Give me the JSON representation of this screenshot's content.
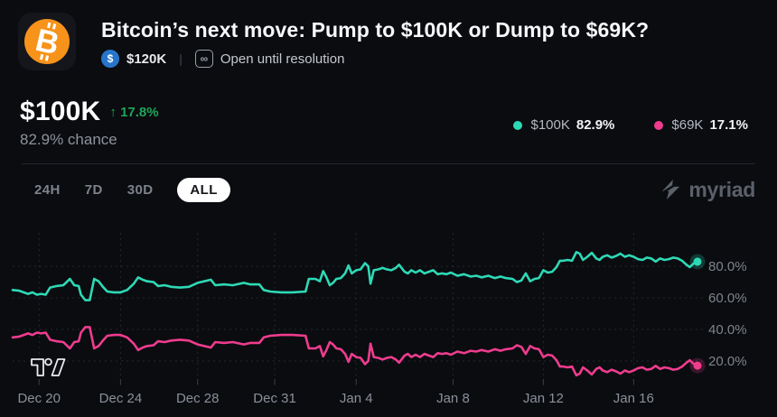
{
  "header": {
    "title": "Bitcoin’s next move: Pump to $100K or Dump to $69K?",
    "volume": "$120K",
    "status": "Open until resolution"
  },
  "icons": {
    "bitcoin": "B",
    "usdc": "$",
    "infinity": "∞",
    "up_arrow": "↑"
  },
  "price": {
    "outcome": "$100K",
    "change": "17.8%",
    "change_direction": "up",
    "chance": "82.9% chance"
  },
  "legend": {
    "position": "top-right",
    "items": [
      {
        "label": "$100K",
        "value": "82.9%",
        "color": "#2ed9b5"
      },
      {
        "label": "$69K",
        "value": "17.1%",
        "color": "#ef3c8e"
      }
    ]
  },
  "toolbar": {
    "ranges": [
      {
        "label": "24H",
        "active": false
      },
      {
        "label": "7D",
        "active": false
      },
      {
        "label": "30D",
        "active": false
      },
      {
        "label": "ALL",
        "active": true
      }
    ],
    "brand": "myriad"
  },
  "colors": {
    "background": "#0a0c10",
    "accent_green": "#1ea65a",
    "teal_line": "#2ed9b5",
    "pink_line": "#ef3c8e",
    "grid": "#24272d"
  },
  "chart_data": {
    "type": "line",
    "grid": "dashed",
    "x_axis": {
      "unit": "days since Dec 20",
      "range": [
        -1.2,
        29.9
      ],
      "ticks": [
        {
          "t": 0.0,
          "label": "Dec 20"
        },
        {
          "t": 3.7,
          "label": "Dec 24"
        },
        {
          "t": 7.2,
          "label": "Dec 28"
        },
        {
          "t": 10.7,
          "label": "Dec 31"
        },
        {
          "t": 14.4,
          "label": "Jan 4"
        },
        {
          "t": 18.8,
          "label": "Jan 8"
        },
        {
          "t": 22.9,
          "label": "Jan 12"
        },
        {
          "t": 27.0,
          "label": "Jan 16"
        }
      ]
    },
    "y_axis": {
      "unit": "percent chance",
      "range": [
        0,
        100
      ],
      "ticks": [
        {
          "v": 80,
          "label": "80.0%"
        },
        {
          "v": 60,
          "label": "60.0%"
        },
        {
          "v": 40,
          "label": "40.0%"
        },
        {
          "v": 20,
          "label": "20.0%"
        }
      ]
    },
    "series": [
      {
        "name": "$100K",
        "color": "#2ed9b5",
        "end_value": 82.9,
        "points": [
          [
            -1.2,
            65
          ],
          [
            -0.9,
            64.5
          ],
          [
            -0.5,
            62.5
          ],
          [
            -0.3,
            63.5
          ],
          [
            -0.1,
            62
          ],
          [
            0.1,
            62.5
          ],
          [
            0.3,
            62
          ],
          [
            0.5,
            66.5
          ],
          [
            0.8,
            67.5
          ],
          [
            1.1,
            68
          ],
          [
            1.4,
            72
          ],
          [
            1.6,
            68
          ],
          [
            1.8,
            67.5
          ],
          [
            1.9,
            62
          ],
          [
            2.1,
            58.5
          ],
          [
            2.3,
            58.5
          ],
          [
            2.5,
            72
          ],
          [
            2.7,
            70.5
          ],
          [
            2.9,
            67
          ],
          [
            3.1,
            64
          ],
          [
            3.4,
            63.5
          ],
          [
            3.7,
            63.5
          ],
          [
            4.0,
            65
          ],
          [
            4.3,
            69
          ],
          [
            4.5,
            73
          ],
          [
            4.7,
            71.5
          ],
          [
            4.9,
            70.5
          ],
          [
            5.2,
            70
          ],
          [
            5.4,
            67.5
          ],
          [
            5.7,
            68
          ],
          [
            6.0,
            67
          ],
          [
            6.4,
            66.5
          ],
          [
            6.8,
            67
          ],
          [
            7.2,
            69.5
          ],
          [
            7.8,
            71.5
          ],
          [
            8.0,
            68
          ],
          [
            8.4,
            68.5
          ],
          [
            8.8,
            68
          ],
          [
            9.3,
            69.5
          ],
          [
            9.6,
            68.5
          ],
          [
            10.0,
            68.5
          ],
          [
            10.2,
            65
          ],
          [
            10.5,
            64
          ],
          [
            11.0,
            63.5
          ],
          [
            11.5,
            63.5
          ],
          [
            12.1,
            64
          ],
          [
            12.25,
            72
          ],
          [
            12.55,
            72
          ],
          [
            12.75,
            70.5
          ],
          [
            12.9,
            77
          ],
          [
            13.05,
            73
          ],
          [
            13.2,
            68
          ],
          [
            13.35,
            69.5
          ],
          [
            13.5,
            72
          ],
          [
            13.7,
            72.5
          ],
          [
            13.9,
            75.5
          ],
          [
            14.05,
            80.5
          ],
          [
            14.2,
            75.5
          ],
          [
            14.4,
            77.5
          ],
          [
            14.6,
            78
          ],
          [
            14.8,
            82
          ],
          [
            14.95,
            80
          ],
          [
            15.05,
            69
          ],
          [
            15.2,
            77.5
          ],
          [
            15.4,
            78
          ],
          [
            15.6,
            79
          ],
          [
            15.8,
            78
          ],
          [
            16.0,
            77.5
          ],
          [
            16.2,
            79
          ],
          [
            16.35,
            81
          ],
          [
            16.6,
            76.5
          ],
          [
            16.75,
            75.5
          ],
          [
            16.9,
            77.5
          ],
          [
            17.1,
            76
          ],
          [
            17.3,
            77.5
          ],
          [
            17.5,
            75.5
          ],
          [
            17.7,
            76.5
          ],
          [
            17.9,
            77.5
          ],
          [
            18.1,
            75
          ],
          [
            18.3,
            75.5
          ],
          [
            18.5,
            75
          ],
          [
            18.7,
            76
          ],
          [
            19.0,
            74
          ],
          [
            19.3,
            75
          ],
          [
            19.6,
            73.5
          ],
          [
            19.85,
            74
          ],
          [
            20.1,
            73
          ],
          [
            20.4,
            74
          ],
          [
            20.7,
            72.5
          ],
          [
            20.95,
            73.5
          ],
          [
            21.2,
            72.5
          ],
          [
            21.5,
            72
          ],
          [
            21.7,
            70
          ],
          [
            21.9,
            71
          ],
          [
            22.1,
            75.5
          ],
          [
            22.3,
            70.5
          ],
          [
            22.5,
            72
          ],
          [
            22.7,
            72.5
          ],
          [
            22.9,
            77.5
          ],
          [
            23.1,
            76
          ],
          [
            23.3,
            76.5
          ],
          [
            23.5,
            79.5
          ],
          [
            23.65,
            83.5
          ],
          [
            23.8,
            83.5
          ],
          [
            24.0,
            84
          ],
          [
            24.2,
            83.5
          ],
          [
            24.4,
            89
          ],
          [
            24.55,
            88
          ],
          [
            24.7,
            84
          ],
          [
            24.9,
            86
          ],
          [
            25.1,
            88.5
          ],
          [
            25.3,
            85
          ],
          [
            25.45,
            84
          ],
          [
            25.6,
            86
          ],
          [
            25.8,
            87
          ],
          [
            26.0,
            85.5
          ],
          [
            26.2,
            86.5
          ],
          [
            26.4,
            88
          ],
          [
            26.6,
            86
          ],
          [
            26.8,
            87
          ],
          [
            27.0,
            86
          ],
          [
            27.2,
            84.5
          ],
          [
            27.4,
            84
          ],
          [
            27.6,
            85.5
          ],
          [
            27.8,
            85
          ],
          [
            28.0,
            83
          ],
          [
            28.2,
            85
          ],
          [
            28.4,
            84
          ],
          [
            28.6,
            84.5
          ],
          [
            28.8,
            85.5
          ],
          [
            29.0,
            85
          ],
          [
            29.2,
            83.5
          ],
          [
            29.4,
            81
          ],
          [
            29.55,
            79.5
          ],
          [
            29.7,
            81.5
          ],
          [
            29.9,
            82.9
          ]
        ]
      },
      {
        "name": "$69K",
        "color": "#ef3c8e",
        "end_value": 17.1,
        "points": "complement",
        "complement_of": "$100K",
        "note": "binary market: values are 100 minus the $100K series"
      }
    ]
  }
}
